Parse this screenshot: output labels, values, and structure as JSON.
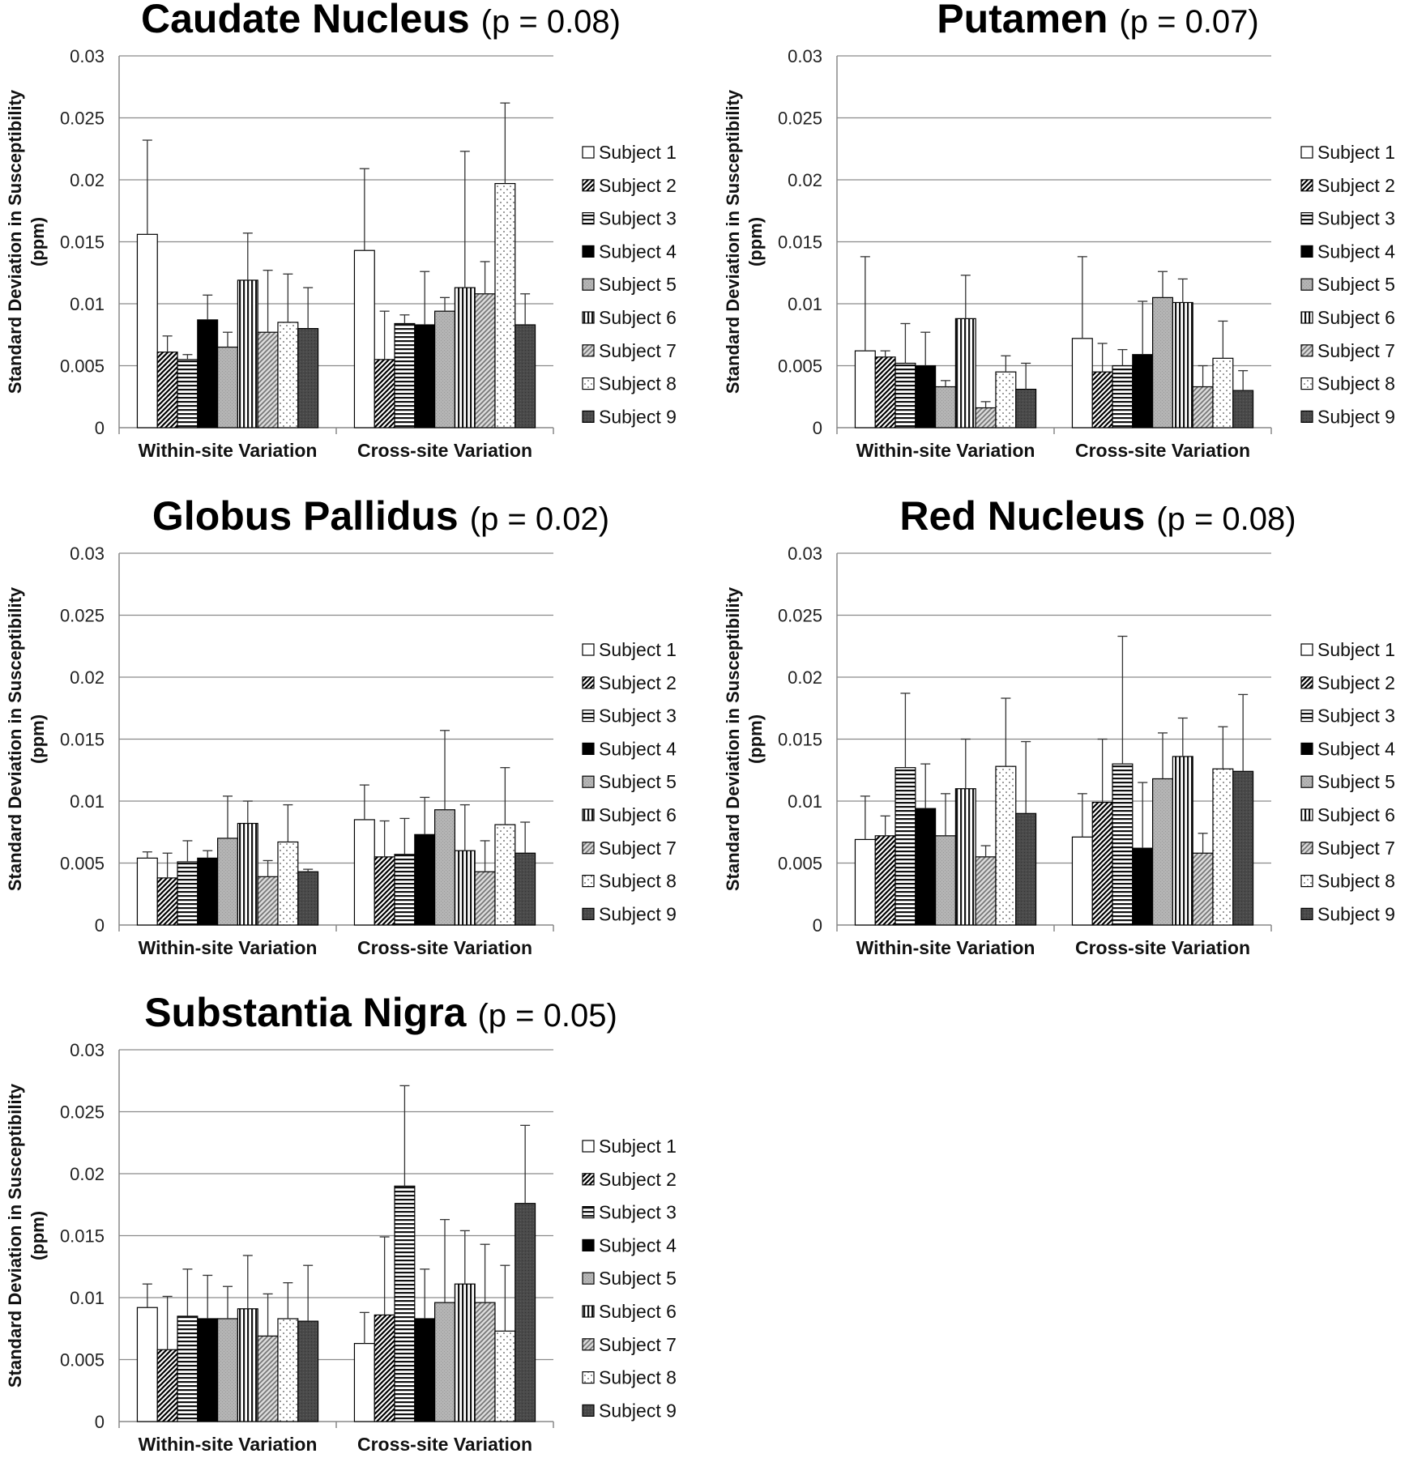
{
  "chart_data": [
    {
      "type": "bar",
      "title": "Caudate Nucleus",
      "subtitle": "(p = 0.08)",
      "ylabel": "Standard Deviation in Susceptibility (ppm)",
      "ylabel_lines": [
        "Standard Deviation in Susceptibility",
        "(ppm)"
      ],
      "ylim": [
        0,
        0.03
      ],
      "yticks": [
        "0",
        "0.005",
        "0.01",
        "0.015",
        "0.02",
        "0.025",
        "0.03"
      ],
      "categories": [
        "Within-site Variation",
        "Cross-site Variation"
      ],
      "grid": true,
      "legend_position": "right",
      "series": [
        {
          "name": "Subject 1",
          "values": [
            0.0156,
            0.0143
          ],
          "errors": [
            0.0076,
            0.0066
          ]
        },
        {
          "name": "Subject 2",
          "values": [
            0.0061,
            0.0055
          ],
          "errors": [
            0.0013,
            0.0039
          ]
        },
        {
          "name": "Subject 3",
          "values": [
            0.0055,
            0.0084
          ],
          "errors": [
            0.0004,
            0.0007
          ]
        },
        {
          "name": "Subject 4",
          "values": [
            0.0087,
            0.0083
          ],
          "errors": [
            0.002,
            0.0043
          ]
        },
        {
          "name": "Subject 5",
          "values": [
            0.0065,
            0.0094
          ],
          "errors": [
            0.0012,
            0.0011
          ]
        },
        {
          "name": "Subject 6",
          "values": [
            0.0119,
            0.0113
          ],
          "errors": [
            0.0038,
            0.011
          ]
        },
        {
          "name": "Subject 7",
          "values": [
            0.0077,
            0.0108
          ],
          "errors": [
            0.005,
            0.0026
          ]
        },
        {
          "name": "Subject 8",
          "values": [
            0.0085,
            0.0197
          ],
          "errors": [
            0.0039,
            0.0065
          ]
        },
        {
          "name": "Subject 9",
          "values": [
            0.008,
            0.0083
          ],
          "errors": [
            0.0033,
            0.0025
          ]
        }
      ]
    },
    {
      "type": "bar",
      "title": "Putamen",
      "subtitle": "(p = 0.07)",
      "ylabel": "Standard Deviation in Susceptibility (ppm)",
      "ylabel_lines": [
        "Standard Deviation in Susceptibility",
        "(ppm)"
      ],
      "ylim": [
        0,
        0.03
      ],
      "yticks": [
        "0",
        "0.005",
        "0.01",
        "0.015",
        "0.02",
        "0.025",
        "0.03"
      ],
      "categories": [
        "Within-site Variation",
        "Cross-site Variation"
      ],
      "grid": true,
      "legend_position": "right",
      "series": [
        {
          "name": "Subject 1",
          "values": [
            0.0062,
            0.0072
          ],
          "errors": [
            0.0076,
            0.0066
          ]
        },
        {
          "name": "Subject 2",
          "values": [
            0.0057,
            0.0045
          ],
          "errors": [
            0.0005,
            0.0023
          ]
        },
        {
          "name": "Subject 3",
          "values": [
            0.0052,
            0.005
          ],
          "errors": [
            0.0032,
            0.0013
          ]
        },
        {
          "name": "Subject 4",
          "values": [
            0.005,
            0.0059
          ],
          "errors": [
            0.0027,
            0.0043
          ]
        },
        {
          "name": "Subject 5",
          "values": [
            0.0033,
            0.0105
          ],
          "errors": [
            0.0005,
            0.0021
          ]
        },
        {
          "name": "Subject 6",
          "values": [
            0.0088,
            0.0101
          ],
          "errors": [
            0.0035,
            0.0019
          ]
        },
        {
          "name": "Subject 7",
          "values": [
            0.0016,
            0.0033
          ],
          "errors": [
            0.0005,
            0.0017
          ]
        },
        {
          "name": "Subject 8",
          "values": [
            0.0045,
            0.0056
          ],
          "errors": [
            0.0013,
            0.003
          ]
        },
        {
          "name": "Subject 9",
          "values": [
            0.0031,
            0.003
          ],
          "errors": [
            0.0021,
            0.0016
          ]
        }
      ]
    },
    {
      "type": "bar",
      "title": "Globus Pallidus",
      "subtitle": "(p = 0.02)",
      "ylabel": "Standard Deviation in Susceptibility (ppm)",
      "ylabel_lines": [
        "Standard Deviation in Susceptibility",
        "(ppm)"
      ],
      "ylim": [
        0,
        0.03
      ],
      "yticks": [
        "0",
        "0.005",
        "0.01",
        "0.015",
        "0.02",
        "0.025",
        "0.03"
      ],
      "categories": [
        "Within-site Variation",
        "Cross-site Variation"
      ],
      "grid": true,
      "legend_position": "right",
      "series": [
        {
          "name": "Subject 1",
          "values": [
            0.0054,
            0.0085
          ],
          "errors": [
            0.0005,
            0.0028
          ]
        },
        {
          "name": "Subject 2",
          "values": [
            0.0038,
            0.0055
          ],
          "errors": [
            0.002,
            0.0029
          ]
        },
        {
          "name": "Subject 3",
          "values": [
            0.0051,
            0.0057
          ],
          "errors": [
            0.0017,
            0.0029
          ]
        },
        {
          "name": "Subject 4",
          "values": [
            0.0054,
            0.0073
          ],
          "errors": [
            0.0006,
            0.003
          ]
        },
        {
          "name": "Subject 5",
          "values": [
            0.007,
            0.0093
          ],
          "errors": [
            0.0034,
            0.0064
          ]
        },
        {
          "name": "Subject 6",
          "values": [
            0.0082,
            0.006
          ],
          "errors": [
            0.0018,
            0.0037
          ]
        },
        {
          "name": "Subject 7",
          "values": [
            0.0039,
            0.0043
          ],
          "errors": [
            0.0013,
            0.0025
          ]
        },
        {
          "name": "Subject 8",
          "values": [
            0.0067,
            0.0081
          ],
          "errors": [
            0.003,
            0.0046
          ]
        },
        {
          "name": "Subject 9",
          "values": [
            0.0043,
            0.0058
          ],
          "errors": [
            0.0002,
            0.0025
          ]
        }
      ]
    },
    {
      "type": "bar",
      "title": "Red Nucleus",
      "subtitle": "(p = 0.08)",
      "ylabel": "Standard Deviation in Susceptibility (ppm)",
      "ylabel_lines": [
        "Standard Deviation in Susceptibility",
        "(ppm)"
      ],
      "ylim": [
        0,
        0.03
      ],
      "yticks": [
        "0",
        "0.005",
        "0.01",
        "0.015",
        "0.02",
        "0.025",
        "0.03"
      ],
      "categories": [
        "Within-site Variation",
        "Cross-site Variation"
      ],
      "grid": true,
      "legend_position": "right",
      "series": [
        {
          "name": "Subject 1",
          "values": [
            0.0069,
            0.0071
          ],
          "errors": [
            0.0035,
            0.0035
          ]
        },
        {
          "name": "Subject 2",
          "values": [
            0.0072,
            0.0099
          ],
          "errors": [
            0.0016,
            0.0051
          ]
        },
        {
          "name": "Subject 3",
          "values": [
            0.0127,
            0.013
          ],
          "errors": [
            0.006,
            0.0103
          ]
        },
        {
          "name": "Subject 4",
          "values": [
            0.0094,
            0.0062
          ],
          "errors": [
            0.0036,
            0.0053
          ]
        },
        {
          "name": "Subject 5",
          "values": [
            0.0072,
            0.0118
          ],
          "errors": [
            0.0034,
            0.0037
          ]
        },
        {
          "name": "Subject 6",
          "values": [
            0.011,
            0.0136
          ],
          "errors": [
            0.004,
            0.0031
          ]
        },
        {
          "name": "Subject 7",
          "values": [
            0.0055,
            0.0058
          ],
          "errors": [
            0.0009,
            0.0016
          ]
        },
        {
          "name": "Subject 8",
          "values": [
            0.0128,
            0.0126
          ],
          "errors": [
            0.0055,
            0.0034
          ]
        },
        {
          "name": "Subject 9",
          "values": [
            0.009,
            0.0124
          ],
          "errors": [
            0.0058,
            0.0062
          ]
        }
      ]
    },
    {
      "type": "bar",
      "title": "Substantia Nigra",
      "subtitle": "(p = 0.05)",
      "ylabel": "Standard Deviation in Susceptibility (ppm)",
      "ylabel_lines": [
        "Standard Deviation in Susceptibility",
        "(ppm)"
      ],
      "ylim": [
        0,
        0.03
      ],
      "yticks": [
        "0",
        "0.005",
        "0.01",
        "0.015",
        "0.02",
        "0.025",
        "0.03"
      ],
      "categories": [
        "Within-site Variation",
        "Cross-site Variation"
      ],
      "grid": true,
      "legend_position": "right",
      "series": [
        {
          "name": "Subject 1",
          "values": [
            0.0092,
            0.0063
          ],
          "errors": [
            0.0019,
            0.0025
          ]
        },
        {
          "name": "Subject 2",
          "values": [
            0.0058,
            0.0086
          ],
          "errors": [
            0.0043,
            0.0063
          ]
        },
        {
          "name": "Subject 3",
          "values": [
            0.0085,
            0.019
          ],
          "errors": [
            0.0038,
            0.0081
          ]
        },
        {
          "name": "Subject 4",
          "values": [
            0.0083,
            0.0083
          ],
          "errors": [
            0.0035,
            0.004
          ]
        },
        {
          "name": "Subject 5",
          "values": [
            0.0083,
            0.0096
          ],
          "errors": [
            0.0026,
            0.0067
          ]
        },
        {
          "name": "Subject 6",
          "values": [
            0.0091,
            0.0111
          ],
          "errors": [
            0.0043,
            0.0043
          ]
        },
        {
          "name": "Subject 7",
          "values": [
            0.0069,
            0.0096
          ],
          "errors": [
            0.0034,
            0.0047
          ]
        },
        {
          "name": "Subject 8",
          "values": [
            0.0083,
            0.0073
          ],
          "errors": [
            0.0029,
            0.0053
          ]
        },
        {
          "name": "Subject 9",
          "values": [
            0.0081,
            0.0176
          ],
          "errors": [
            0.0045,
            0.0063
          ]
        }
      ]
    }
  ]
}
